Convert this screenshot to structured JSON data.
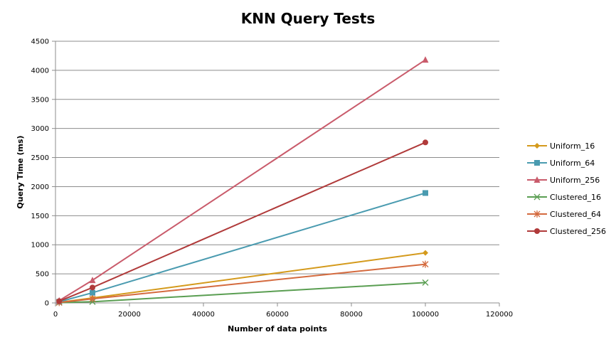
{
  "chart_data": {
    "type": "line",
    "title": "KNN Query Tests",
    "xlabel": "Number of data points",
    "ylabel": "Query Time (ms)",
    "xlim": [
      0,
      120000
    ],
    "ylim": [
      0,
      4500
    ],
    "x_ticks": [
      0,
      20000,
      40000,
      60000,
      80000,
      100000,
      120000
    ],
    "y_ticks": [
      0,
      500,
      1000,
      1500,
      2000,
      2500,
      3000,
      3500,
      4000,
      4500
    ],
    "grid": "horizontal",
    "legend_position": "right",
    "x": [
      1000,
      10000,
      100000
    ],
    "series": [
      {
        "name": "Uniform_16",
        "values": [
          10,
          85,
          860
        ],
        "color": "#D49A1C",
        "marker": "diamond"
      },
      {
        "name": "Uniform_64",
        "values": [
          20,
          175,
          1890
        ],
        "color": "#4A9BB0",
        "marker": "square"
      },
      {
        "name": "Uniform_256",
        "values": [
          40,
          390,
          4180
        ],
        "color": "#C95B6B",
        "marker": "triangle"
      },
      {
        "name": "Clustered_16",
        "values": [
          5,
          20,
          350
        ],
        "color": "#5A9E52",
        "marker": "x"
      },
      {
        "name": "Clustered_64",
        "values": [
          8,
          70,
          665
        ],
        "color": "#D46A3E",
        "marker": "star"
      },
      {
        "name": "Clustered_256",
        "values": [
          30,
          265,
          2760
        ],
        "color": "#B03A3A",
        "marker": "circle"
      }
    ]
  }
}
